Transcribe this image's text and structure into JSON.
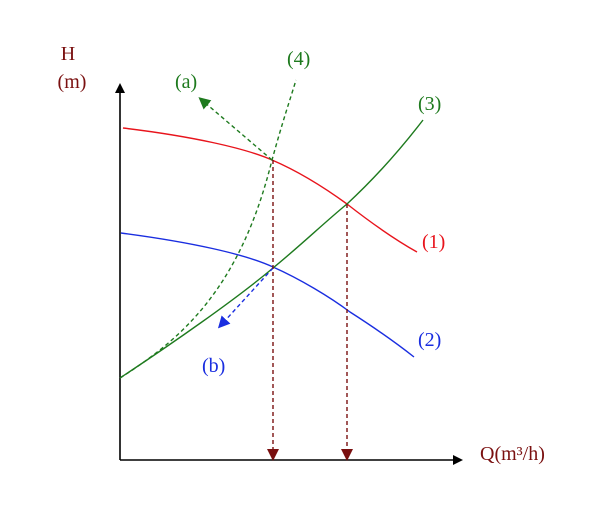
{
  "axes": {
    "y_label_line1": "H",
    "y_label_line2": "(m)",
    "x_label": "Q(m³/h)"
  },
  "curves": {
    "c1": {
      "label": "(1)",
      "color": "#e8141c"
    },
    "c2": {
      "label": "(2)",
      "color": "#1a2ee0"
    },
    "c3": {
      "label": "(3)",
      "color": "#1e7a1e"
    },
    "c4": {
      "label": "(4)",
      "color": "#1e7a1e"
    }
  },
  "arrows": {
    "a": {
      "label": "(a)",
      "color": "#1e7a1e"
    },
    "b": {
      "label": "(b)",
      "color": "#1a2ee0"
    }
  },
  "colors": {
    "axis": "#000000",
    "axis_label": "#7a1010",
    "drop_line": "#7a1010"
  }
}
